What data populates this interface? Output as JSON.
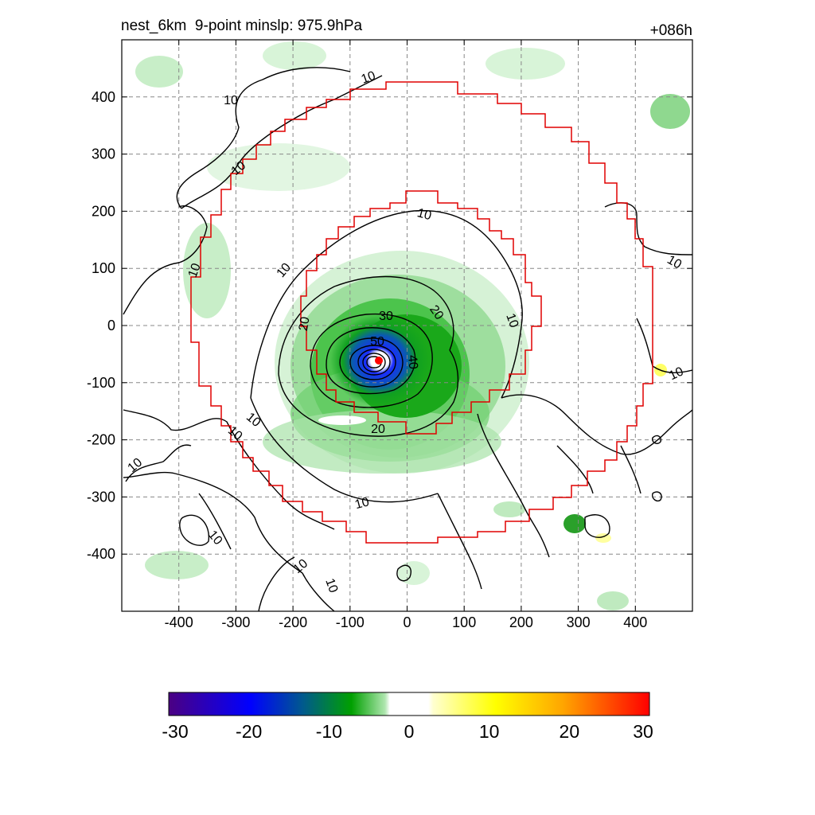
{
  "header": {
    "title_left": "nest_6km  9-point minslp: 975.9hPa",
    "title_right": "+086h"
  },
  "axes": {
    "x_ticks": [
      "-400",
      "-300",
      "-200",
      "-100",
      "0",
      "100",
      "200",
      "300",
      "400"
    ],
    "y_ticks": [
      "400",
      "300",
      "200",
      "100",
      "0",
      "-100",
      "-200",
      "-300",
      "-400"
    ],
    "xlim": [
      -500,
      500
    ],
    "ylim": [
      -500,
      500
    ],
    "grid": true
  },
  "contours": {
    "labels": [
      "10",
      "10",
      "10",
      "10",
      "10",
      "10",
      "10",
      "10",
      "10",
      "10",
      "10",
      "10",
      "10",
      "10",
      "10",
      "10",
      "20",
      "20",
      "20",
      "30",
      "40",
      "50"
    ]
  },
  "colorbar": {
    "ticks": [
      "-30",
      "-20",
      "-10",
      "0",
      "10",
      "20",
      "30"
    ],
    "range": [
      -30,
      30
    ],
    "colors": {
      "negative_strong": "#4b0082",
      "negative_mid": "#0000ff",
      "negative_low": "#00a000",
      "neutral": "#ffffff",
      "positive_low": "#ffff00",
      "positive_mid": "#ffa500",
      "positive_strong": "#ff0000"
    }
  },
  "colors": {
    "nest_boundary": "#e00000",
    "center_marker": "#ff0000",
    "contour_line": "#000000"
  }
}
